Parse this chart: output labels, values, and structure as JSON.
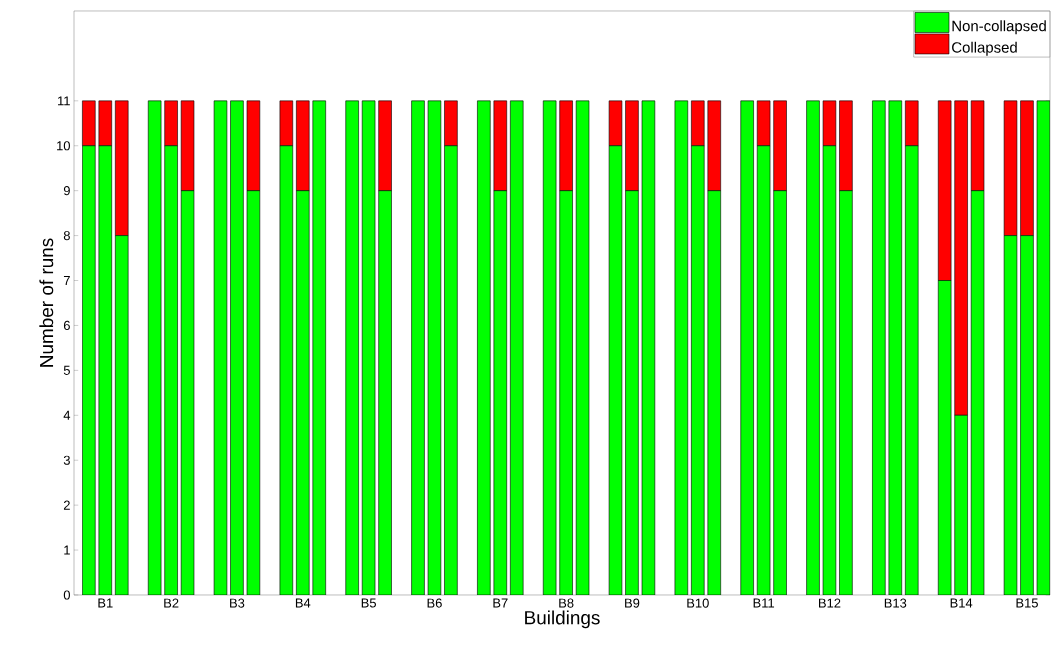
{
  "chart_data": {
    "type": "bar",
    "stacked": true,
    "xlabel": "Buildings",
    "ylabel": "Number of runs",
    "categories": [
      null,
      "B1",
      null,
      null,
      null,
      "B2",
      null,
      null,
      null,
      "B3",
      null,
      null,
      null,
      "B4",
      null,
      null,
      null,
      "B5",
      null,
      null,
      null,
      "B6",
      null,
      null,
      null,
      "B7",
      null,
      null,
      null,
      "B8",
      null,
      null,
      null,
      "B9",
      null,
      null,
      null,
      "B10",
      null,
      null,
      null,
      "B11",
      null,
      null,
      null,
      "B12",
      null,
      null,
      null,
      "B13",
      null,
      null,
      null,
      "B14",
      null,
      null,
      null,
      "B15",
      null
    ],
    "series": [
      {
        "name": "Non-collapsed",
        "color": "#00ff00",
        "values": [
          10,
          10,
          8,
          0,
          11,
          10,
          9,
          0,
          11,
          11,
          9,
          0,
          10,
          9,
          11,
          0,
          11,
          11,
          9,
          0,
          11,
          11,
          10,
          0,
          11,
          9,
          11,
          0,
          11,
          9,
          11,
          0,
          10,
          9,
          11,
          0,
          11,
          10,
          9,
          0,
          11,
          10,
          9,
          0,
          11,
          10,
          9,
          0,
          11,
          11,
          10,
          0,
          7,
          4,
          9,
          0,
          8,
          8,
          11
        ]
      },
      {
        "name": "Collapsed",
        "color": "#ff0000",
        "values": [
          1,
          1,
          3,
          0,
          0,
          1,
          2,
          0,
          0,
          0,
          2,
          0,
          1,
          2,
          0,
          0,
          0,
          0,
          2,
          0,
          0,
          0,
          1,
          0,
          0,
          2,
          0,
          0,
          0,
          2,
          0,
          0,
          1,
          2,
          0,
          0,
          0,
          1,
          2,
          0,
          0,
          1,
          2,
          0,
          0,
          1,
          2,
          0,
          0,
          0,
          1,
          0,
          4,
          7,
          2,
          0,
          3,
          3,
          0
        ]
      }
    ],
    "ylim": [
      0,
      13
    ],
    "yticks": [
      0,
      1,
      2,
      3,
      4,
      5,
      6,
      7,
      8,
      9,
      10,
      11
    ],
    "legend": "top right",
    "grid": false
  }
}
